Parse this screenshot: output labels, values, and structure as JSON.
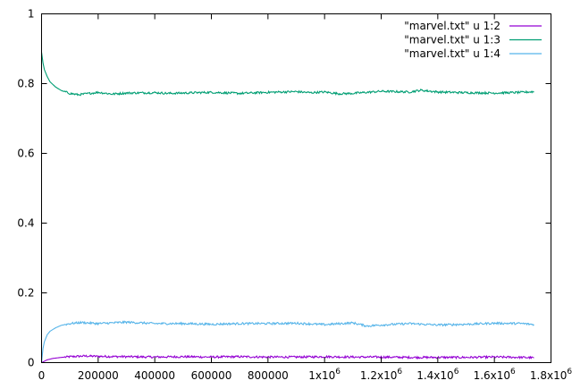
{
  "chart_data": {
    "type": "line",
    "title": "",
    "xlabel": "",
    "ylabel": "",
    "xlim": [
      0,
      1800000
    ],
    "ylim": [
      0,
      1
    ],
    "grid": false,
    "legend_placement": "top-right",
    "x_ticks": [
      {
        "value": 0,
        "label": "0"
      },
      {
        "value": 200000,
        "label": "200000"
      },
      {
        "value": 400000,
        "label": "400000"
      },
      {
        "value": 600000,
        "label": "600000"
      },
      {
        "value": 800000,
        "label": "800000"
      },
      {
        "value": 1000000,
        "label": "1x10",
        "sup": "6"
      },
      {
        "value": 1200000,
        "label": "1.2x10",
        "sup": "6"
      },
      {
        "value": 1400000,
        "label": "1.4x10",
        "sup": "6"
      },
      {
        "value": 1600000,
        "label": "1.6x10",
        "sup": "6"
      },
      {
        "value": 1800000,
        "label": "1.8x10",
        "sup": "6"
      }
    ],
    "y_ticks": [
      {
        "value": 0,
        "label": "0"
      },
      {
        "value": 0.2,
        "label": "0.2"
      },
      {
        "value": 0.4,
        "label": "0.4"
      },
      {
        "value": 0.6,
        "label": "0.6"
      },
      {
        "value": 0.8,
        "label": "0.8"
      },
      {
        "value": 1,
        "label": "1"
      }
    ],
    "series": [
      {
        "name": "\"marvel.txt\" u 1:2",
        "color": "#9400d3",
        "x": [
          0,
          10000,
          20000,
          40000,
          70000,
          100000,
          150000,
          200000,
          300000,
          400000,
          500000,
          600000,
          700000,
          800000,
          900000,
          1000000,
          1100000,
          1200000,
          1300000,
          1400000,
          1500000,
          1600000,
          1700000,
          1740000
        ],
        "y": [
          0.0,
          0.004,
          0.008,
          0.012,
          0.015,
          0.017,
          0.019,
          0.018,
          0.017,
          0.016,
          0.017,
          0.016,
          0.017,
          0.016,
          0.016,
          0.017,
          0.016,
          0.016,
          0.015,
          0.015,
          0.015,
          0.016,
          0.015,
          0.014
        ]
      },
      {
        "name": "\"marvel.txt\" u 1:3",
        "color": "#009e73",
        "x": [
          0,
          5000,
          10000,
          20000,
          30000,
          50000,
          70000,
          100000,
          130000,
          200000,
          250000,
          300000,
          400000,
          450000,
          500000,
          600000,
          700000,
          800000,
          900000,
          950000,
          1000000,
          1050000,
          1100000,
          1200000,
          1300000,
          1340000,
          1400000,
          1500000,
          1600000,
          1700000,
          1740000
        ],
        "y": [
          0.89,
          0.86,
          0.84,
          0.82,
          0.805,
          0.79,
          0.78,
          0.772,
          0.768,
          0.775,
          0.77,
          0.773,
          0.774,
          0.772,
          0.773,
          0.775,
          0.772,
          0.775,
          0.777,
          0.774,
          0.776,
          0.771,
          0.772,
          0.778,
          0.776,
          0.781,
          0.776,
          0.774,
          0.773,
          0.775,
          0.777
        ]
      },
      {
        "name": "\"marvel.txt\" u 1:4",
        "color": "#56b4e9",
        "x": [
          0,
          5000,
          10000,
          20000,
          30000,
          50000,
          70000,
          100000,
          140000,
          200000,
          250000,
          300000,
          400000,
          500000,
          600000,
          700000,
          800000,
          900000,
          1000000,
          1100000,
          1150000,
          1200000,
          1300000,
          1350000,
          1400000,
          1500000,
          1600000,
          1700000,
          1740000
        ],
        "y": [
          0.0,
          0.04,
          0.06,
          0.08,
          0.09,
          0.1,
          0.107,
          0.112,
          0.115,
          0.112,
          0.114,
          0.116,
          0.112,
          0.112,
          0.11,
          0.112,
          0.112,
          0.113,
          0.109,
          0.114,
          0.105,
          0.108,
          0.112,
          0.11,
          0.108,
          0.11,
          0.113,
          0.112,
          0.109
        ]
      }
    ]
  }
}
